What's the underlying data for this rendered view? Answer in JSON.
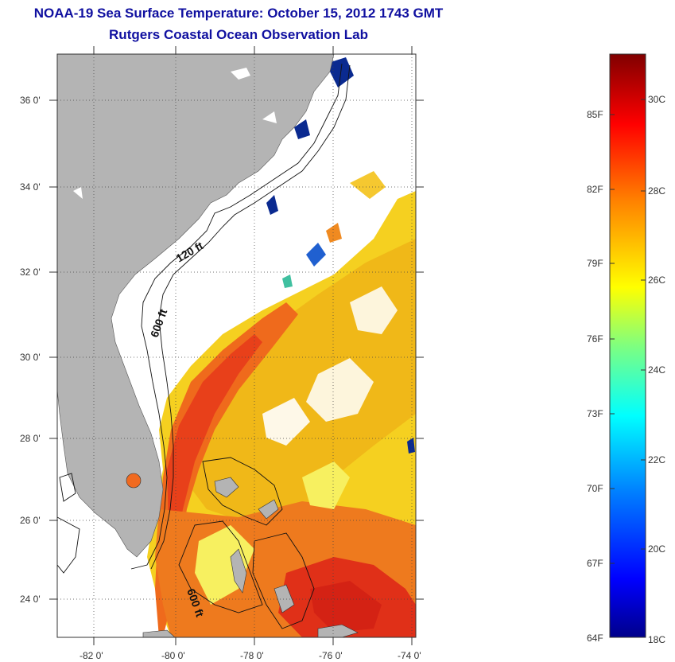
{
  "header": {
    "title": "NOAA-19 Sea Surface Temperature:  October 15, 2012 1743 GMT",
    "subtitle": "Rutgers Coastal Ocean Observation Lab"
  },
  "map": {
    "lat_labels": [
      "24 0'",
      "26 0'",
      "28 0'",
      "30 0'",
      "32 0'",
      "34 0'",
      "36 0'"
    ],
    "lon_labels": [
      "-82 0'",
      "-80 0'",
      "-78 0'",
      "-76 0'",
      "-74 0'"
    ],
    "contour_labels": {
      "c120": "120 ft",
      "c600a": "600 ft",
      "c600b": "600 ft"
    },
    "colors": {
      "land": "#b4b4b4",
      "no_data": "#ffffff"
    }
  },
  "colorbar": {
    "fahrenheit": [
      "85F",
      "82F",
      "79F",
      "76F",
      "73F",
      "70F",
      "67F",
      "64F"
    ],
    "celsius": [
      "30C",
      "28C",
      "26C",
      "24C",
      "22C",
      "20C",
      "18C"
    ]
  }
}
